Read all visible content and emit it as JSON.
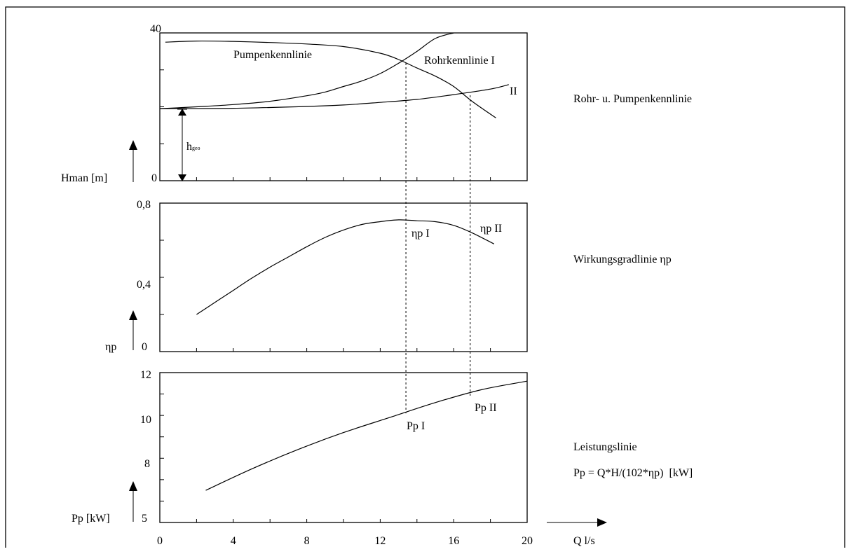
{
  "chart_data": [
    {
      "type": "line",
      "right_label": "Rohr- u. Pumpenkennlinie",
      "ylabel": "Hman [m]",
      "y_tick_labels": [
        "0",
        "40"
      ],
      "ylim": [
        0,
        40
      ],
      "xlim": [
        0,
        20
      ],
      "series": [
        {
          "name": "Pumpenkennlinie",
          "x": [
            0.3,
            2,
            4,
            6,
            8,
            10,
            12,
            13,
            14,
            15,
            16,
            17,
            18.3
          ],
          "y": [
            37.5,
            37.8,
            37.7,
            37.4,
            37,
            36.3,
            34.5,
            32.8,
            30.5,
            28.3,
            25.5,
            21.5,
            17
          ]
        },
        {
          "name": "Rohrkennlinie I",
          "x": [
            0,
            2,
            4,
            6,
            8,
            9,
            10,
            11,
            12,
            13,
            14,
            15,
            16
          ],
          "y": [
            19.5,
            20,
            20.6,
            21.5,
            23,
            24,
            25.5,
            27,
            29,
            31.8,
            35,
            38.5,
            40
          ]
        },
        {
          "name": "II",
          "x": [
            0,
            4,
            8,
            10,
            12,
            14,
            16,
            18,
            19
          ],
          "y": [
            19.5,
            19.6,
            20.1,
            20.5,
            21.2,
            22,
            23.3,
            24.8,
            26
          ]
        }
      ],
      "annotation": "hgeo",
      "annotation_value": 19.5
    },
    {
      "type": "line",
      "right_label": "Wirkungsgradlinie ηp",
      "ylabel": "ηp",
      "y_tick_labels": [
        "0",
        "0,4",
        "0,8"
      ],
      "ylim": [
        0,
        0.8
      ],
      "xlim": [
        0,
        20
      ],
      "series": [
        {
          "name": "",
          "x": [
            2,
            3,
            4,
            5,
            6,
            7,
            8,
            9,
            10,
            11,
            12,
            13,
            14,
            15,
            16,
            17,
            18.2
          ],
          "y": [
            0.2,
            0.265,
            0.33,
            0.395,
            0.455,
            0.51,
            0.565,
            0.615,
            0.655,
            0.685,
            0.7,
            0.71,
            0.705,
            0.7,
            0.68,
            0.64,
            0.58
          ]
        }
      ],
      "points": [
        {
          "label": "ηp I",
          "x": 13.4,
          "y": 0.71
        },
        {
          "label": "ηp II",
          "x": 16.9,
          "y": 0.62
        }
      ]
    },
    {
      "type": "line",
      "right_label": "Leistungslinie",
      "formula": "Pp = Q*H/(102*ηp)  [kW]",
      "ylabel": "Pp [kW]",
      "y_tick_labels": [
        "5",
        "8",
        "10",
        "12"
      ],
      "ylim": [
        5,
        12
      ],
      "xlim": [
        0,
        20
      ],
      "x_tick_labels": [
        "0",
        "4",
        "8",
        "12",
        "16",
        "20"
      ],
      "xlabel": "Q l/s",
      "series": [
        {
          "name": "",
          "x": [
            2.5,
            5,
            7.5,
            10,
            12.5,
            15,
            17.5,
            20
          ],
          "y": [
            6.5,
            7.5,
            8.4,
            9.2,
            9.9,
            10.6,
            11.2,
            11.6
          ]
        }
      ],
      "points": [
        {
          "label": "Pp I",
          "x": 13.4,
          "y": 10.1
        },
        {
          "label": "Pp II",
          "x": 16.9,
          "y": 10.9
        }
      ]
    }
  ]
}
